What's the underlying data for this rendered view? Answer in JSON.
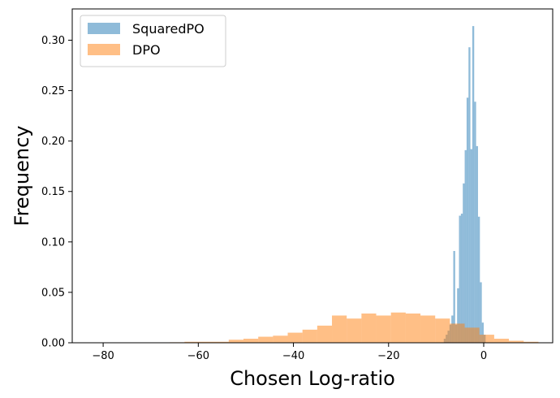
{
  "chart_data": {
    "type": "histogram",
    "xlabel": "Chosen Log-ratio",
    "ylabel": "Frequency",
    "xlim": [
      -86.5,
      14.5
    ],
    "ylim": [
      0,
      0.331
    ],
    "xticks": [
      -80,
      -60,
      -40,
      -20,
      0
    ],
    "yticks": [
      0.0,
      0.05,
      0.1,
      0.15,
      0.2,
      0.25,
      0.3
    ],
    "xtick_labels": [
      "−80",
      "−60",
      "−40",
      "−20",
      "0"
    ],
    "ytick_labels": [
      "0.00",
      "0.05",
      "0.10",
      "0.15",
      "0.20",
      "0.25",
      "0.30"
    ],
    "legend_position": "upper-left",
    "series": [
      {
        "name": "SquaredPO",
        "color": "#1f77b4",
        "alpha": 0.5,
        "bins": [
          {
            "x0": -8.4,
            "x1": -8.0,
            "y": 0.004
          },
          {
            "x0": -8.0,
            "x1": -7.6,
            "y": 0.008
          },
          {
            "x0": -7.6,
            "x1": -7.2,
            "y": 0.012
          },
          {
            "x0": -7.2,
            "x1": -6.8,
            "y": 0.018
          },
          {
            "x0": -6.8,
            "x1": -6.4,
            "y": 0.027
          },
          {
            "x0": -6.4,
            "x1": -6.0,
            "y": 0.091
          },
          {
            "x0": -6.0,
            "x1": -5.6,
            "y": 0.018
          },
          {
            "x0": -5.6,
            "x1": -5.2,
            "y": 0.054
          },
          {
            "x0": -5.2,
            "x1": -4.8,
            "y": 0.126
          },
          {
            "x0": -4.8,
            "x1": -4.4,
            "y": 0.128
          },
          {
            "x0": -4.4,
            "x1": -4.0,
            "y": 0.158
          },
          {
            "x0": -4.0,
            "x1": -3.6,
            "y": 0.191
          },
          {
            "x0": -3.6,
            "x1": -3.2,
            "y": 0.243
          },
          {
            "x0": -3.2,
            "x1": -2.8,
            "y": 0.293
          },
          {
            "x0": -2.8,
            "x1": -2.4,
            "y": 0.192
          },
          {
            "x0": -2.4,
            "x1": -2.0,
            "y": 0.314
          },
          {
            "x0": -2.0,
            "x1": -1.6,
            "y": 0.239
          },
          {
            "x0": -1.6,
            "x1": -1.2,
            "y": 0.195
          },
          {
            "x0": -1.2,
            "x1": -0.8,
            "y": 0.125
          },
          {
            "x0": -0.8,
            "x1": -0.4,
            "y": 0.06
          },
          {
            "x0": -0.4,
            "x1": 0.0,
            "y": 0.02
          },
          {
            "x0": 0.0,
            "x1": 0.4,
            "y": 0.008
          }
        ]
      },
      {
        "name": "DPO",
        "color": "#ff7f0e",
        "alpha": 0.5,
        "bins": [
          {
            "x0": -66.0,
            "x1": -62.9,
            "y": 0.0005
          },
          {
            "x0": -62.9,
            "x1": -59.8,
            "y": 0.001
          },
          {
            "x0": -59.8,
            "x1": -56.7,
            "y": 0.001
          },
          {
            "x0": -56.7,
            "x1": -53.6,
            "y": 0.001
          },
          {
            "x0": -53.6,
            "x1": -50.5,
            "y": 0.003
          },
          {
            "x0": -50.5,
            "x1": -47.4,
            "y": 0.004
          },
          {
            "x0": -47.4,
            "x1": -44.3,
            "y": 0.006
          },
          {
            "x0": -44.3,
            "x1": -41.2,
            "y": 0.007
          },
          {
            "x0": -41.2,
            "x1": -38.1,
            "y": 0.01
          },
          {
            "x0": -38.1,
            "x1": -35.0,
            "y": 0.013
          },
          {
            "x0": -35.0,
            "x1": -31.9,
            "y": 0.017
          },
          {
            "x0": -31.9,
            "x1": -28.8,
            "y": 0.027
          },
          {
            "x0": -28.8,
            "x1": -25.7,
            "y": 0.024
          },
          {
            "x0": -25.7,
            "x1": -22.6,
            "y": 0.029
          },
          {
            "x0": -22.6,
            "x1": -19.5,
            "y": 0.027
          },
          {
            "x0": -19.5,
            "x1": -16.4,
            "y": 0.03
          },
          {
            "x0": -16.4,
            "x1": -13.3,
            "y": 0.029
          },
          {
            "x0": -13.3,
            "x1": -10.2,
            "y": 0.027
          },
          {
            "x0": -10.2,
            "x1": -7.1,
            "y": 0.024
          },
          {
            "x0": -7.1,
            "x1": -4.0,
            "y": 0.019
          },
          {
            "x0": -4.0,
            "x1": -0.9,
            "y": 0.015
          },
          {
            "x0": -0.9,
            "x1": 2.2,
            "y": 0.008
          },
          {
            "x0": 2.2,
            "x1": 5.3,
            "y": 0.004
          },
          {
            "x0": 5.3,
            "x1": 8.4,
            "y": 0.002
          },
          {
            "x0": 8.4,
            "x1": 11.5,
            "y": 0.001
          }
        ]
      }
    ]
  }
}
